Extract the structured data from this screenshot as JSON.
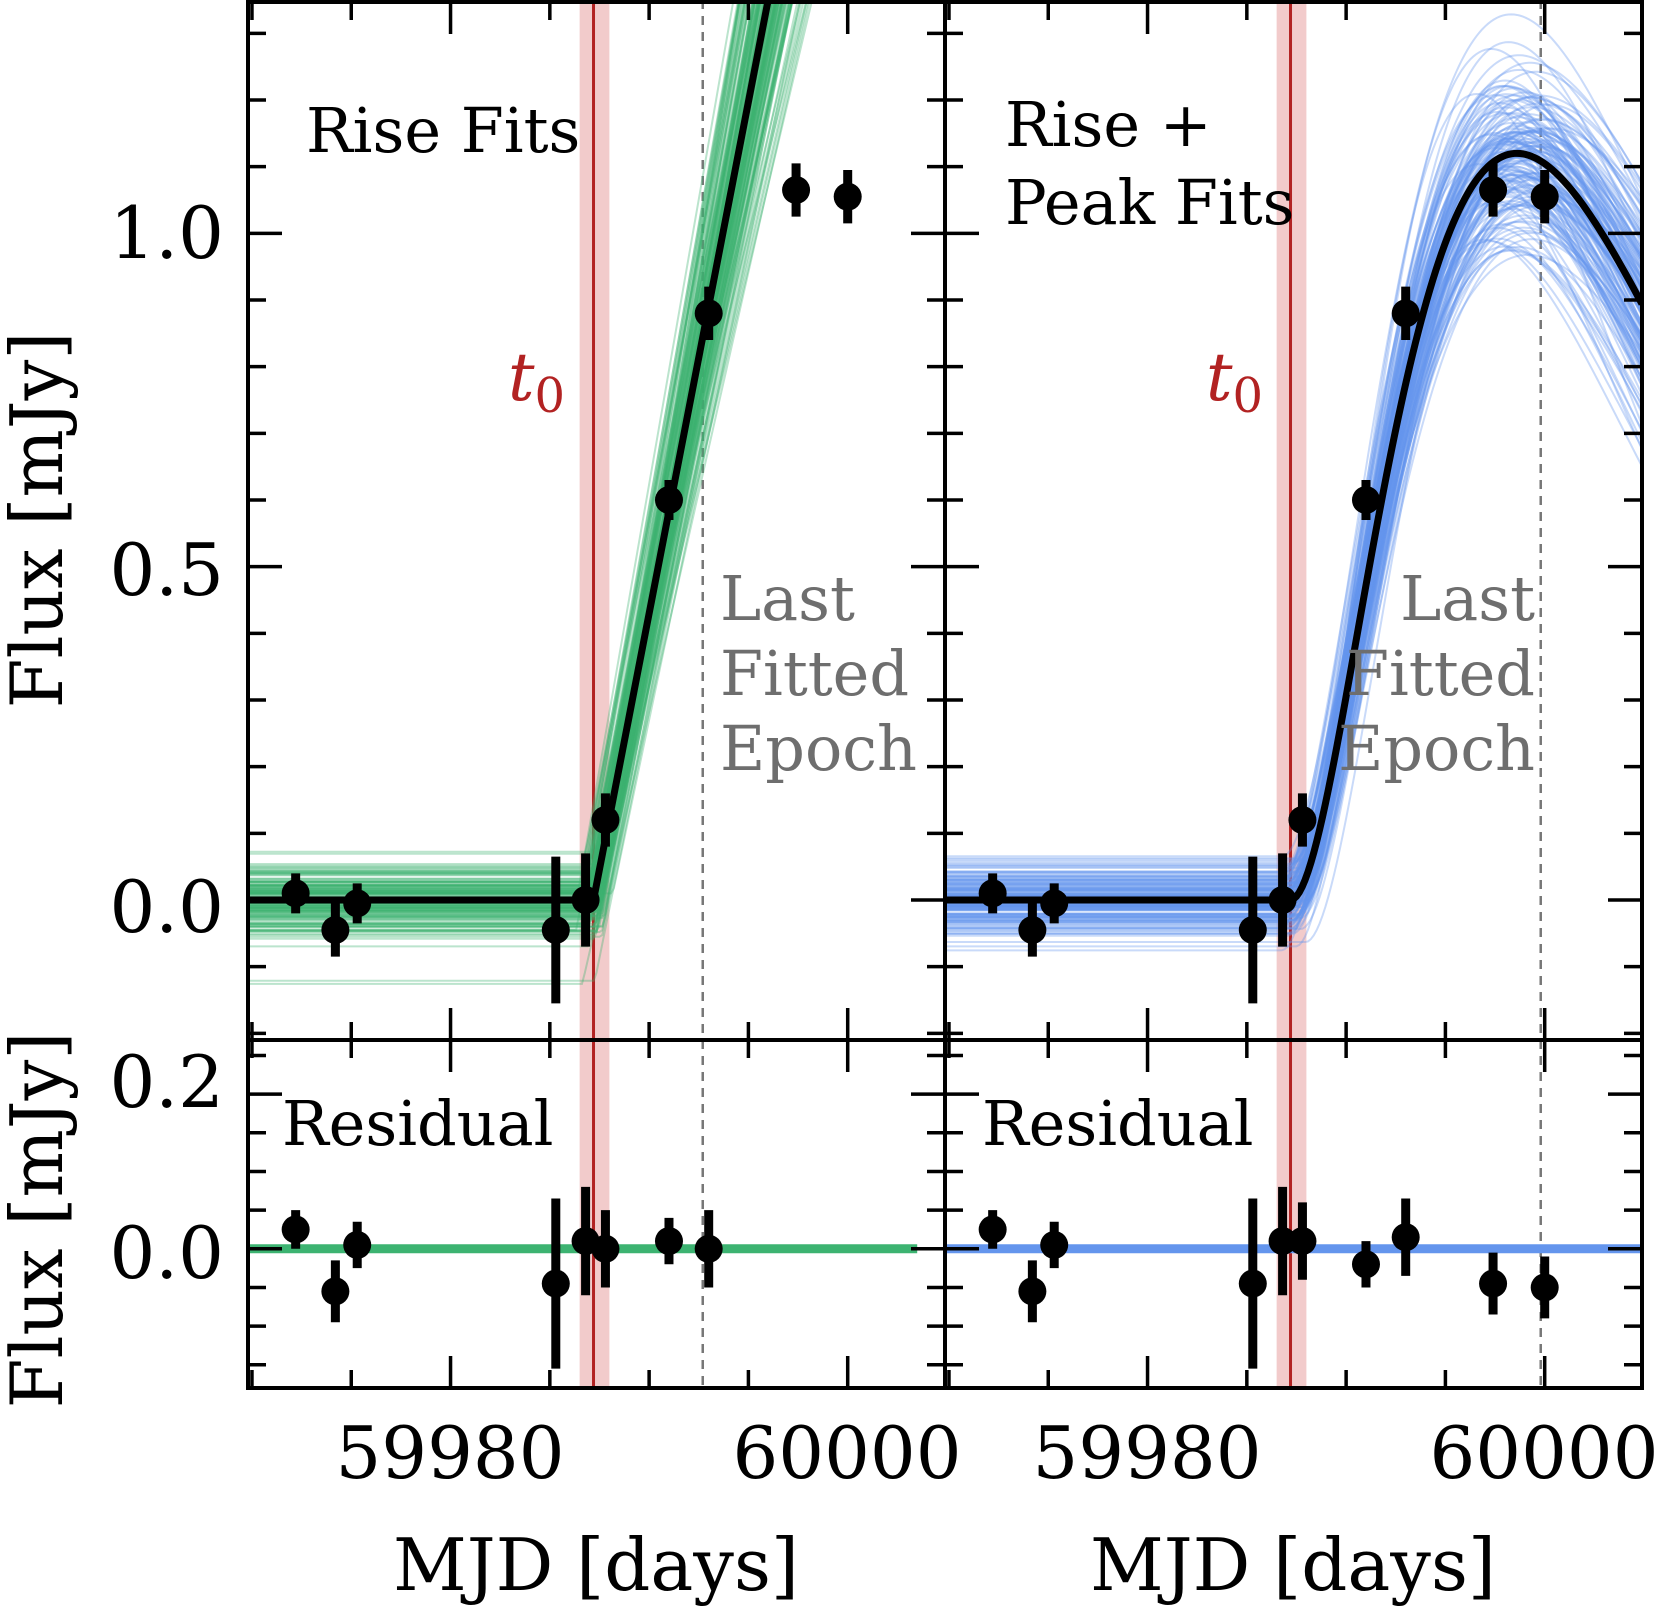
{
  "chart_data": {
    "type": "scatter",
    "x_unit": "MJD",
    "t0": 59987.2,
    "t0_band": [
      59986.5,
      59988.0
    ],
    "last_fitted_epoch_left": 59992.7,
    "last_fitted_epoch_right": 59999.8,
    "xlim": [
      59969.8,
      60004.9
    ],
    "top_ylim": [
      -0.21,
      1.35
    ],
    "bottom_ylim": [
      -0.18,
      0.27
    ],
    "x_ticks": [
      59980,
      60000
    ],
    "x_tick_labels": [
      "59980",
      "60000"
    ],
    "top_y_ticks": [
      0.0,
      0.5,
      1.0
    ],
    "top_y_tick_labels": [
      "0.0",
      "0.5",
      "1.0"
    ],
    "bottom_y_ticks": [
      0.0,
      0.2
    ],
    "bottom_y_tick_labels": [
      "0.0",
      "0.2"
    ],
    "xlabel": "MJD [days]",
    "top_ylabel": "Flux [mJy]",
    "bottom_ylabel": "Flux [mJy]",
    "observations": [
      {
        "x": 59972.2,
        "y": 0.01,
        "err": 0.03
      },
      {
        "x": 59974.2,
        "y": -0.045,
        "err": 0.04
      },
      {
        "x": 59975.3,
        "y": -0.005,
        "err": 0.03
      },
      {
        "x": 59985.3,
        "y": -0.045,
        "err": 0.11
      },
      {
        "x": 59986.8,
        "y": 0.0,
        "err": 0.07
      },
      {
        "x": 59987.8,
        "y": 0.12,
        "err": 0.04
      },
      {
        "x": 59991.0,
        "y": 0.6,
        "err": 0.03
      },
      {
        "x": 59993.0,
        "y": 0.88,
        "err": 0.04
      },
      {
        "x": 59997.4,
        "y": 1.065,
        "err": 0.04
      },
      {
        "x": 60000.0,
        "y": 1.055,
        "err": 0.04
      }
    ],
    "panels": [
      {
        "id": "rise",
        "title": "Rise Fits",
        "color": "#3cb371",
        "fit_model": "linear-rise",
        "fit_params": {
          "t0": 59987.2,
          "slope": 0.1535
        },
        "n_points_fitted": 8,
        "residuals": [
          0.025,
          -0.055,
          0.005,
          -0.045,
          0.01,
          0.0,
          0.01,
          0.0
        ],
        "residual_errors": [
          0.025,
          0.04,
          0.03,
          0.11,
          0.07,
          0.05,
          0.03,
          0.05
        ]
      },
      {
        "id": "rise-peak",
        "title_line1": "Rise +",
        "title_line2": "Peak Fits",
        "color": "#6495ed",
        "fit_model": "rise-peak",
        "fit_params": {
          "t0": 59987.2,
          "t_peak": 59998.6,
          "peak": 1.12
        },
        "n_points_fitted": 10,
        "residuals": [
          0.025,
          -0.055,
          0.005,
          -0.045,
          0.01,
          0.01,
          -0.02,
          0.015,
          -0.045,
          -0.05
        ],
        "residual_errors": [
          0.025,
          0.04,
          0.03,
          0.11,
          0.07,
          0.05,
          0.03,
          0.05,
          0.04,
          0.04
        ]
      }
    ],
    "labels": {
      "t0_symbol": "t",
      "t0_subscript": "0",
      "last_line1": "Last",
      "last_line2": "Fitted",
      "last_line3": "Epoch",
      "residual": "Residual"
    }
  }
}
